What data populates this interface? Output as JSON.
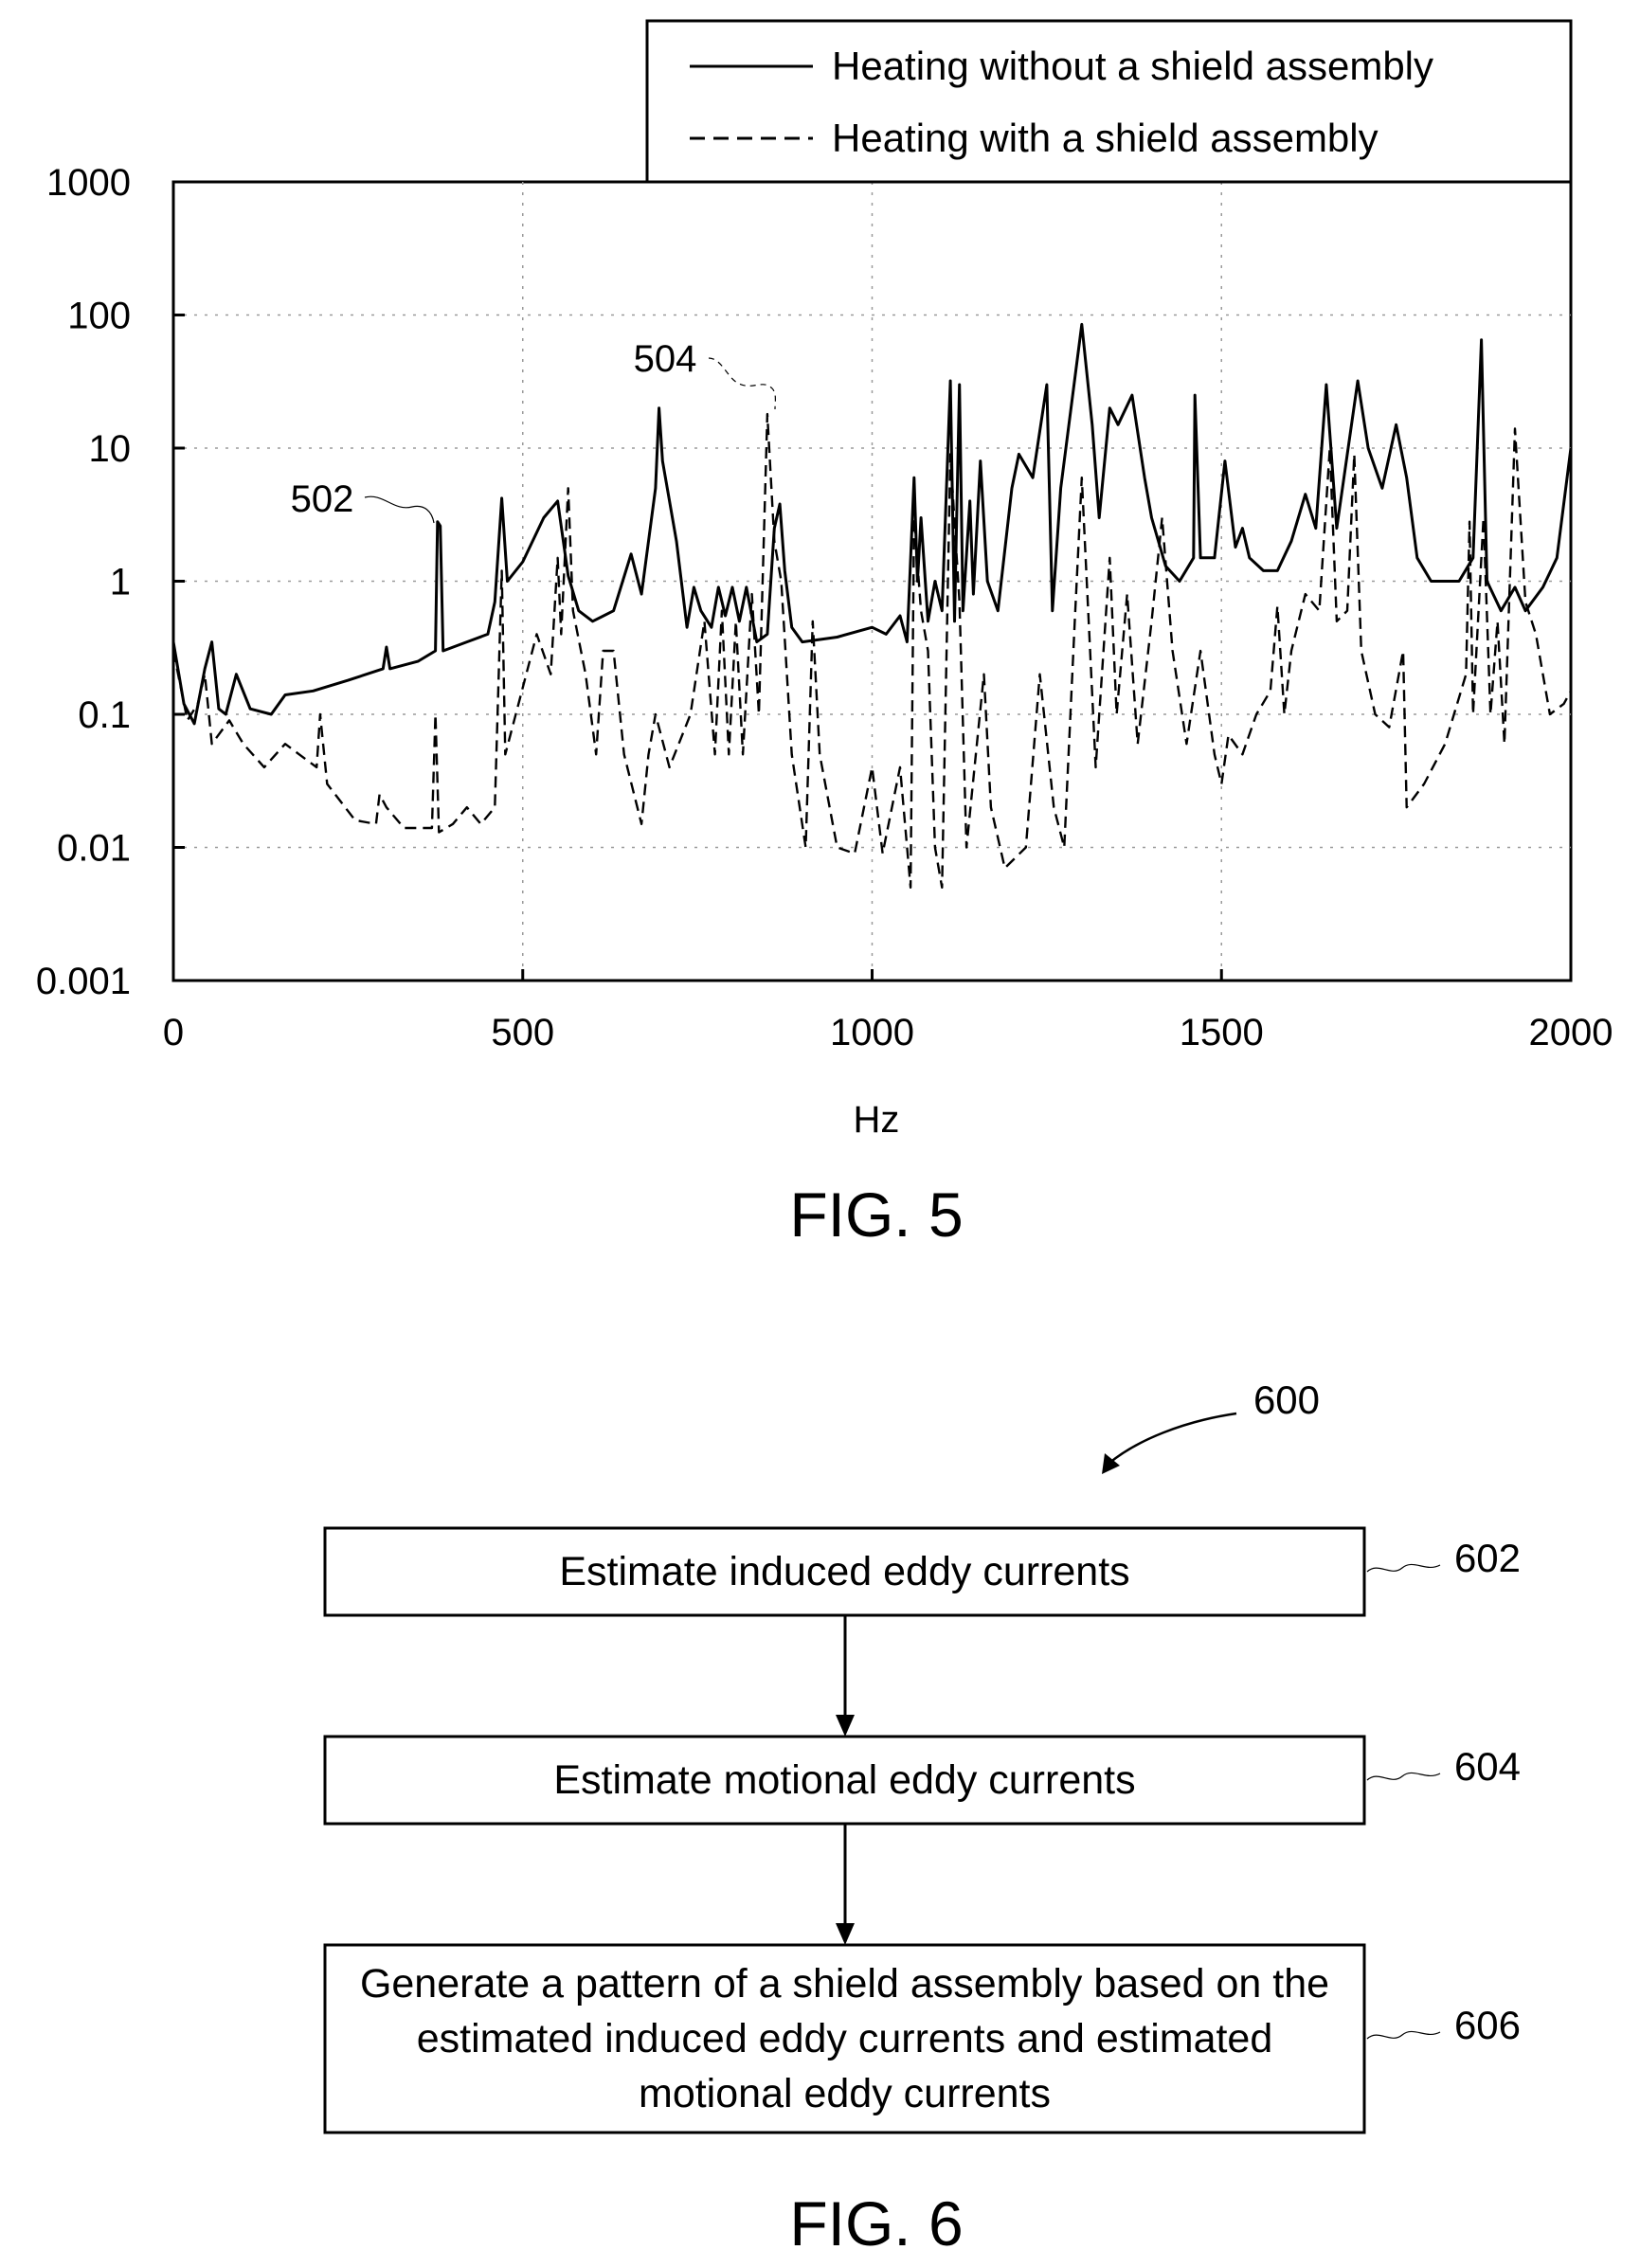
{
  "figure5": {
    "caption": "FIG. 5",
    "chart_data": {
      "type": "line",
      "xlabel": "Hz",
      "ylabel": "",
      "xlim": [
        0,
        2000
      ],
      "ylim": [
        0.001,
        1000
      ],
      "yscale": "log",
      "x_ticks": [
        "0",
        "500",
        "1000",
        "1500",
        "2000"
      ],
      "y_ticks": [
        "0.001",
        "0.01",
        "0.1",
        "1",
        "10",
        "100",
        "1000"
      ],
      "legend": {
        "placement": "top-right"
      },
      "series": [
        {
          "name": "Heating without a shield assembly",
          "style": "solid",
          "callout": "502",
          "points": [
            [
              0,
              0.35
            ],
            [
              15,
              0.12
            ],
            [
              30,
              0.085
            ],
            [
              45,
              0.22
            ],
            [
              55,
              0.35
            ],
            [
              65,
              0.11
            ],
            [
              75,
              0.1
            ],
            [
              90,
              0.2
            ],
            [
              110,
              0.11
            ],
            [
              140,
              0.1
            ],
            [
              160,
              0.14
            ],
            [
              200,
              0.15
            ],
            [
              250,
              0.18
            ],
            [
              300,
              0.22
            ],
            [
              305,
              0.32
            ],
            [
              310,
              0.22
            ],
            [
              350,
              0.25
            ],
            [
              375,
              0.3
            ],
            [
              378,
              2.8
            ],
            [
              382,
              2.6
            ],
            [
              386,
              0.3
            ],
            [
              420,
              0.35
            ],
            [
              450,
              0.4
            ],
            [
              460,
              0.7
            ],
            [
              470,
              4.2
            ],
            [
              478,
              1.0
            ],
            [
              500,
              1.4
            ],
            [
              530,
              3.0
            ],
            [
              550,
              4.0
            ],
            [
              565,
              1.1
            ],
            [
              580,
              0.6
            ],
            [
              600,
              0.5
            ],
            [
              630,
              0.6
            ],
            [
              655,
              1.6
            ],
            [
              670,
              0.8
            ],
            [
              690,
              5.0
            ],
            [
              695,
              20.0
            ],
            [
              700,
              8.0
            ],
            [
              720,
              2.0
            ],
            [
              735,
              0.45
            ],
            [
              745,
              0.9
            ],
            [
              755,
              0.6
            ],
            [
              770,
              0.45
            ],
            [
              780,
              0.9
            ],
            [
              790,
              0.55
            ],
            [
              800,
              0.9
            ],
            [
              810,
              0.5
            ],
            [
              820,
              0.9
            ],
            [
              835,
              0.35
            ],
            [
              850,
              0.4
            ],
            [
              860,
              2.5
            ],
            [
              868,
              3.8
            ],
            [
              875,
              1.2
            ],
            [
              885,
              0.45
            ],
            [
              900,
              0.35
            ],
            [
              950,
              0.38
            ],
            [
              1000,
              0.45
            ],
            [
              1020,
              0.4
            ],
            [
              1040,
              0.55
            ],
            [
              1050,
              0.35
            ],
            [
              1060,
              6.0
            ],
            [
              1065,
              1.0
            ],
            [
              1070,
              3.0
            ],
            [
              1080,
              0.5
            ],
            [
              1090,
              1.0
            ],
            [
              1100,
              0.6
            ],
            [
              1112,
              32.0
            ],
            [
              1118,
              0.5
            ],
            [
              1125,
              30.0
            ],
            [
              1130,
              0.6
            ],
            [
              1140,
              4.0
            ],
            [
              1145,
              0.8
            ],
            [
              1155,
              8.0
            ],
            [
              1165,
              1.0
            ],
            [
              1180,
              0.6
            ],
            [
              1200,
              5.0
            ],
            [
              1210,
              9.0
            ],
            [
              1230,
              6.0
            ],
            [
              1250,
              30.0
            ],
            [
              1258,
              0.6
            ],
            [
              1270,
              5.0
            ],
            [
              1300,
              85.0
            ],
            [
              1315,
              15.0
            ],
            [
              1325,
              3.0
            ],
            [
              1340,
              20.0
            ],
            [
              1352,
              15.0
            ],
            [
              1372,
              25.0
            ],
            [
              1390,
              6.0
            ],
            [
              1400,
              3.0
            ],
            [
              1420,
              1.3
            ],
            [
              1440,
              1.0
            ],
            [
              1460,
              1.5
            ],
            [
              1462,
              25.0
            ],
            [
              1470,
              1.5
            ],
            [
              1490,
              1.5
            ],
            [
              1505,
              8.0
            ],
            [
              1520,
              1.8
            ],
            [
              1530,
              2.5
            ],
            [
              1540,
              1.5
            ],
            [
              1560,
              1.2
            ],
            [
              1580,
              1.2
            ],
            [
              1600,
              2.0
            ],
            [
              1620,
              4.5
            ],
            [
              1635,
              2.5
            ],
            [
              1650,
              30.0
            ],
            [
              1665,
              2.5
            ],
            [
              1695,
              32.0
            ],
            [
              1710,
              10.0
            ],
            [
              1730,
              5.0
            ],
            [
              1750,
              15.0
            ],
            [
              1765,
              6.0
            ],
            [
              1780,
              1.5
            ],
            [
              1800,
              1.0
            ],
            [
              1840,
              1.0
            ],
            [
              1860,
              1.5
            ],
            [
              1872,
              65.0
            ],
            [
              1880,
              1.0
            ],
            [
              1900,
              0.6
            ],
            [
              1920,
              0.9
            ],
            [
              1935,
              0.6
            ],
            [
              1960,
              0.9
            ],
            [
              1980,
              1.5
            ],
            [
              2000,
              10.0
            ]
          ]
        },
        {
          "name": "Heating with a shield assembly",
          "style": "dashed",
          "callout": "504",
          "points": [
            [
              0,
              0.3
            ],
            [
              20,
              0.09
            ],
            [
              35,
              0.12
            ],
            [
              45,
              0.2
            ],
            [
              55,
              0.06
            ],
            [
              80,
              0.09
            ],
            [
              100,
              0.06
            ],
            [
              130,
              0.04
            ],
            [
              160,
              0.06
            ],
            [
              180,
              0.05
            ],
            [
              205,
              0.04
            ],
            [
              210,
              0.1
            ],
            [
              220,
              0.03
            ],
            [
              260,
              0.016
            ],
            [
              290,
              0.015
            ],
            [
              295,
              0.025
            ],
            [
              305,
              0.02
            ],
            [
              330,
              0.014
            ],
            [
              370,
              0.014
            ],
            [
              375,
              0.1
            ],
            [
              380,
              0.013
            ],
            [
              400,
              0.015
            ],
            [
              420,
              0.02
            ],
            [
              440,
              0.015
            ],
            [
              460,
              0.02
            ],
            [
              470,
              1.2
            ],
            [
              475,
              0.05
            ],
            [
              490,
              0.1
            ],
            [
              520,
              0.4
            ],
            [
              540,
              0.2
            ],
            [
              550,
              1.5
            ],
            [
              555,
              0.4
            ],
            [
              565,
              5.0
            ],
            [
              572,
              0.6
            ],
            [
              590,
              0.2
            ],
            [
              605,
              0.05
            ],
            [
              615,
              0.3
            ],
            [
              630,
              0.3
            ],
            [
              645,
              0.05
            ],
            [
              670,
              0.015
            ],
            [
              680,
              0.05
            ],
            [
              690,
              0.1
            ],
            [
              710,
              0.04
            ],
            [
              740,
              0.1
            ],
            [
              760,
              0.5
            ],
            [
              775,
              0.05
            ],
            [
              785,
              0.6
            ],
            [
              795,
              0.05
            ],
            [
              805,
              0.5
            ],
            [
              815,
              0.05
            ],
            [
              828,
              0.8
            ],
            [
              838,
              0.1
            ],
            [
              850,
              18.0
            ],
            [
              860,
              2.0
            ],
            [
              870,
              1.0
            ],
            [
              885,
              0.05
            ],
            [
              905,
              0.01
            ],
            [
              915,
              0.5
            ],
            [
              925,
              0.05
            ],
            [
              950,
              0.01
            ],
            [
              975,
              0.009
            ],
            [
              1000,
              0.04
            ],
            [
              1015,
              0.009
            ],
            [
              1040,
              0.04
            ],
            [
              1055,
              0.005
            ],
            [
              1060,
              3.0
            ],
            [
              1070,
              0.6
            ],
            [
              1080,
              0.3
            ],
            [
              1090,
              0.01
            ],
            [
              1100,
              0.005
            ],
            [
              1112,
              9.0
            ],
            [
              1125,
              0.7
            ],
            [
              1135,
              0.01
            ],
            [
              1150,
              0.06
            ],
            [
              1160,
              0.2
            ],
            [
              1170,
              0.02
            ],
            [
              1190,
              0.007
            ],
            [
              1220,
              0.01
            ],
            [
              1240,
              0.2
            ],
            [
              1260,
              0.02
            ],
            [
              1275,
              0.01
            ],
            [
              1290,
              0.5
            ],
            [
              1300,
              6.0
            ],
            [
              1310,
              0.5
            ],
            [
              1320,
              0.04
            ],
            [
              1340,
              1.5
            ],
            [
              1350,
              0.1
            ],
            [
              1365,
              0.8
            ],
            [
              1380,
              0.06
            ],
            [
              1400,
              0.5
            ],
            [
              1415,
              3.0
            ],
            [
              1430,
              0.3
            ],
            [
              1450,
              0.06
            ],
            [
              1470,
              0.3
            ],
            [
              1490,
              0.05
            ],
            [
              1500,
              0.03
            ],
            [
              1510,
              0.07
            ],
            [
              1530,
              0.05
            ],
            [
              1550,
              0.1
            ],
            [
              1570,
              0.15
            ],
            [
              1580,
              0.65
            ],
            [
              1590,
              0.1
            ],
            [
              1600,
              0.3
            ],
            [
              1620,
              0.8
            ],
            [
              1640,
              0.6
            ],
            [
              1655,
              10.0
            ],
            [
              1665,
              0.5
            ],
            [
              1680,
              0.6
            ],
            [
              1690,
              9.0
            ],
            [
              1700,
              0.3
            ],
            [
              1720,
              0.1
            ],
            [
              1740,
              0.08
            ],
            [
              1760,
              0.3
            ],
            [
              1765,
              0.02
            ],
            [
              1790,
              0.03
            ],
            [
              1820,
              0.06
            ],
            [
              1850,
              0.2
            ],
            [
              1855,
              2.8
            ],
            [
              1860,
              0.1
            ],
            [
              1875,
              3.0
            ],
            [
              1885,
              0.1
            ],
            [
              1895,
              0.5
            ],
            [
              1905,
              0.06
            ],
            [
              1920,
              14.0
            ],
            [
              1935,
              0.7
            ],
            [
              1950,
              0.4
            ],
            [
              1970,
              0.1
            ],
            [
              1990,
              0.12
            ],
            [
              2000,
              0.15
            ]
          ]
        }
      ]
    }
  },
  "figure6": {
    "caption": "FIG. 6",
    "diagram_ref": "600",
    "steps": [
      {
        "ref": "602",
        "text": "Estimate induced eddy currents"
      },
      {
        "ref": "604",
        "text": "Estimate motional eddy currents"
      },
      {
        "ref": "606",
        "text": "Generate a pattern of a shield assembly based on the estimated induced eddy currents and estimated motional eddy currents"
      }
    ]
  }
}
